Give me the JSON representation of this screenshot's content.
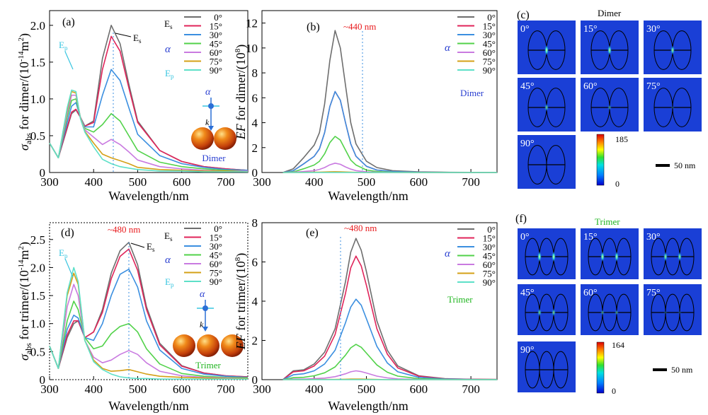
{
  "colors": {
    "0": "#6e6e6e",
    "15": "#e0245a",
    "30": "#3b8fe0",
    "45": "#52d24a",
    "60": "#c97ae0",
    "75": "#d4a017",
    "90": "#5de0c8",
    "accent_red": "#e8191c",
    "alpha_blue": "#2a3fd1",
    "trimer_green": "#1fb51f",
    "ep_cyan": "#38c5e0",
    "map_bg": "#1a3fd6"
  },
  "legend": {
    "angles": [
      "0°",
      "15°",
      "30°",
      "45°",
      "60°",
      "75°",
      "90°"
    ],
    "es": "Es",
    "alpha": "α",
    "ep": "Ep",
    "k": "k"
  },
  "panels": {
    "a": {
      "tag": "(a)",
      "ylabel": "σabs for dimer/(10-14m2)",
      "xlabel": "Wavelength/nm",
      "structure": "Dimer",
      "es_annot": "Es",
      "ep_annot": "Ep"
    },
    "b": {
      "tag": "(b)",
      "ylabel": "EF for dimer/(108)",
      "xlabel": "Wavelength/nm",
      "peak": "~440 nm",
      "structure": "Dimer"
    },
    "c": {
      "tag": "(c)",
      "title": "Dimer",
      "angles": [
        "0°",
        "15°",
        "30°",
        "45°",
        "60°",
        "75°",
        "90°"
      ],
      "cb_max": "185",
      "cb_min": "0",
      "scale": "50 nm"
    },
    "d": {
      "tag": "(d)",
      "ylabel": "σabs for trimer/(10-14m2)",
      "xlabel": "Wavelength/nm",
      "peak": "~480 nm",
      "structure": "Trimer",
      "es_annot": "Es",
      "ep_annot": "Ep"
    },
    "e": {
      "tag": "(e)",
      "ylabel": "EF for trimer/(108)",
      "xlabel": "Wavelength/nm",
      "peak": "~480 nm",
      "structure": "Trimer"
    },
    "f": {
      "tag": "(f)",
      "title": "Trimer",
      "angles": [
        "0°",
        "15°",
        "30°",
        "45°",
        "60°",
        "75°",
        "90°"
      ],
      "cb_max": "164",
      "cb_min": "0",
      "scale": "50 nm"
    }
  },
  "chart_data": [
    {
      "id": "a",
      "type": "line",
      "x": [
        300,
        320,
        340,
        350,
        360,
        370,
        380,
        400,
        420,
        440,
        460,
        480,
        500,
        550,
        600,
        650,
        700,
        750
      ],
      "xlim": [
        300,
        750
      ],
      "ylim": [
        0,
        2.2
      ],
      "xticks": [
        300,
        400,
        500,
        600,
        700
      ],
      "yticks": [
        0,
        0.5,
        1.0,
        1.5,
        2.0
      ],
      "yticklabels": [
        "0",
        "0.5",
        "1.0",
        "1.5",
        "2.0"
      ],
      "series": [
        {
          "name": "0°",
          "values": [
            0.4,
            0.2,
            0.6,
            0.8,
            0.85,
            0.75,
            0.63,
            0.7,
            1.55,
            2.0,
            1.75,
            1.2,
            0.7,
            0.3,
            0.15,
            0.08,
            0.05,
            0.03
          ]
        },
        {
          "name": "15°",
          "values": [
            0.4,
            0.2,
            0.62,
            0.82,
            0.86,
            0.75,
            0.63,
            0.68,
            1.4,
            1.85,
            1.65,
            1.15,
            0.68,
            0.3,
            0.15,
            0.08,
            0.05,
            0.03
          ]
        },
        {
          "name": "30°",
          "values": [
            0.4,
            0.2,
            0.68,
            0.9,
            0.95,
            0.75,
            0.62,
            0.62,
            1.05,
            1.4,
            1.25,
            0.88,
            0.52,
            0.23,
            0.12,
            0.07,
            0.04,
            0.03
          ]
        },
        {
          "name": "45°",
          "values": [
            0.4,
            0.2,
            0.75,
            0.98,
            1.0,
            0.75,
            0.6,
            0.55,
            0.65,
            0.8,
            0.7,
            0.5,
            0.3,
            0.14,
            0.08,
            0.05,
            0.03,
            0.02
          ]
        },
        {
          "name": "60°",
          "values": [
            0.4,
            0.2,
            0.8,
            1.05,
            1.05,
            0.75,
            0.58,
            0.48,
            0.38,
            0.45,
            0.38,
            0.28,
            0.17,
            0.08,
            0.05,
            0.03,
            0.02,
            0.02
          ]
        },
        {
          "name": "75°",
          "values": [
            0.4,
            0.2,
            0.85,
            1.1,
            1.08,
            0.74,
            0.56,
            0.4,
            0.25,
            0.2,
            0.16,
            0.12,
            0.07,
            0.04,
            0.03,
            0.02,
            0.02,
            0.01
          ]
        },
        {
          "name": "90°",
          "values": [
            0.4,
            0.2,
            0.88,
            1.12,
            1.1,
            0.73,
            0.55,
            0.35,
            0.18,
            0.12,
            0.08,
            0.06,
            0.04,
            0.02,
            0.02,
            0.01,
            0.01,
            0.01
          ]
        }
      ]
    },
    {
      "id": "b",
      "type": "line",
      "x": [
        340,
        360,
        380,
        400,
        410,
        420,
        430,
        440,
        450,
        460,
        470,
        480,
        500,
        520,
        550,
        600,
        650,
        700,
        750
      ],
      "xlim": [
        300,
        750
      ],
      "ylim": [
        0,
        13
      ],
      "xticks": [
        300,
        400,
        500,
        600,
        700
      ],
      "yticks": [
        0,
        2,
        4,
        6,
        8,
        10,
        12
      ],
      "yticklabels": [
        "0",
        "2",
        "4",
        "6",
        "8",
        "10",
        "12"
      ],
      "series": [
        {
          "name": "0°",
          "values": [
            0,
            0.3,
            1.2,
            2.2,
            3.2,
            5.5,
            9.0,
            11.4,
            10.0,
            7.0,
            4.0,
            2.3,
            0.9,
            0.4,
            0.15,
            0.05,
            0.02,
            0.01,
            0
          ]
        },
        {
          "name": "15°",
          "values": [
            0,
            0.15,
            0.7,
            1.3,
            1.9,
            3.2,
            5.3,
            6.5,
            5.8,
            4.0,
            2.3,
            1.3,
            0.5,
            0.2,
            0.08,
            0.03,
            0.01,
            0,
            0
          ]
        },
        {
          "name": "30°",
          "values": [
            0,
            0.15,
            0.7,
            1.3,
            1.9,
            3.2,
            5.3,
            6.5,
            5.8,
            4.0,
            2.3,
            1.3,
            0.5,
            0.2,
            0.08,
            0.03,
            0.01,
            0,
            0
          ]
        },
        {
          "name": "45°",
          "values": [
            0,
            0.05,
            0.3,
            0.6,
            0.9,
            1.5,
            2.4,
            2.9,
            2.6,
            1.8,
            1.0,
            0.6,
            0.2,
            0.08,
            0.03,
            0.01,
            0,
            0,
            0
          ]
        },
        {
          "name": "60°",
          "values": [
            0,
            0.02,
            0.08,
            0.15,
            0.25,
            0.4,
            0.62,
            0.75,
            0.66,
            0.45,
            0.27,
            0.15,
            0.05,
            0.02,
            0.01,
            0,
            0,
            0,
            0
          ]
        },
        {
          "name": "75°",
          "values": [
            0,
            0,
            0.01,
            0.02,
            0.03,
            0.04,
            0.05,
            0.06,
            0.05,
            0.04,
            0.02,
            0.01,
            0,
            0,
            0,
            0,
            0,
            0,
            0
          ]
        },
        {
          "name": "90°",
          "values": [
            0,
            0,
            0,
            0,
            0,
            0,
            0,
            0,
            0,
            0,
            0,
            0,
            0,
            0,
            0,
            0,
            0,
            0,
            0
          ]
        }
      ]
    },
    {
      "id": "d",
      "type": "line",
      "x": [
        300,
        320,
        340,
        355,
        365,
        380,
        400,
        420,
        440,
        460,
        480,
        500,
        520,
        550,
        600,
        650,
        700,
        750
      ],
      "xlim": [
        300,
        750
      ],
      "ylim": [
        0,
        2.8
      ],
      "xticks": [
        300,
        400,
        500,
        600,
        700
      ],
      "yticks": [
        0,
        0.5,
        1.0,
        1.5,
        2.0,
        2.5
      ],
      "yticklabels": [
        "0",
        "0.5",
        "1.0",
        "1.5",
        "2.0",
        "2.5"
      ],
      "series": [
        {
          "name": "0°",
          "values": [
            0.6,
            0.2,
            0.75,
            1.0,
            1.05,
            0.75,
            0.85,
            1.25,
            1.9,
            2.3,
            2.45,
            2.05,
            1.3,
            0.65,
            0.25,
            0.12,
            0.07,
            0.05
          ]
        },
        {
          "name": "15°",
          "values": [
            0.6,
            0.2,
            0.8,
            1.05,
            1.05,
            0.75,
            0.85,
            1.2,
            1.8,
            2.2,
            2.33,
            1.95,
            1.25,
            0.62,
            0.24,
            0.12,
            0.07,
            0.05
          ]
        },
        {
          "name": "30°",
          "values": [
            0.6,
            0.2,
            0.9,
            1.15,
            1.1,
            0.75,
            0.7,
            1.0,
            1.5,
            1.88,
            1.97,
            1.65,
            1.05,
            0.53,
            0.2,
            0.1,
            0.06,
            0.04
          ]
        },
        {
          "name": "45°",
          "values": [
            0.6,
            0.2,
            1.05,
            1.4,
            1.25,
            0.75,
            0.55,
            0.6,
            0.82,
            0.95,
            1.0,
            0.85,
            0.55,
            0.28,
            0.11,
            0.06,
            0.04,
            0.03
          ]
        },
        {
          "name": "60°",
          "values": [
            0.6,
            0.2,
            1.3,
            1.7,
            1.5,
            0.7,
            0.4,
            0.3,
            0.35,
            0.45,
            0.52,
            0.45,
            0.3,
            0.15,
            0.07,
            0.04,
            0.03,
            0.02
          ]
        },
        {
          "name": "75°",
          "values": [
            0.6,
            0.2,
            1.5,
            1.9,
            1.7,
            0.7,
            0.35,
            0.2,
            0.15,
            0.16,
            0.18,
            0.14,
            0.1,
            0.06,
            0.04,
            0.03,
            0.02,
            0.02
          ]
        },
        {
          "name": "90°",
          "values": [
            0.6,
            0.2,
            1.55,
            2.0,
            1.75,
            0.7,
            0.32,
            0.18,
            0.1,
            0.05,
            0.03,
            0.02,
            0.02,
            0.01,
            0.01,
            0.01,
            0.01,
            0.01
          ]
        }
      ]
    },
    {
      "id": "e",
      "type": "line",
      "x": [
        340,
        360,
        380,
        400,
        420,
        440,
        460,
        470,
        480,
        490,
        500,
        520,
        540,
        560,
        600,
        650,
        700,
        750
      ],
      "xlim": [
        300,
        750
      ],
      "ylim": [
        0,
        8
      ],
      "xticks": [
        300,
        400,
        500,
        600,
        700
      ],
      "yticks": [
        0,
        2,
        4,
        6,
        8
      ],
      "yticklabels": [
        "0",
        "2",
        "4",
        "6",
        "8"
      ],
      "series": [
        {
          "name": "0°",
          "values": [
            0,
            0.45,
            0.5,
            0.8,
            1.4,
            2.6,
            5.0,
            6.5,
            7.2,
            6.6,
            5.5,
            3.0,
            1.5,
            0.7,
            0.2,
            0.05,
            0.02,
            0.01
          ]
        },
        {
          "name": "15°",
          "values": [
            0,
            0.4,
            0.45,
            0.7,
            1.2,
            2.3,
            4.4,
            5.7,
            6.3,
            5.8,
            4.8,
            2.6,
            1.3,
            0.6,
            0.18,
            0.04,
            0.02,
            0.01
          ]
        },
        {
          "name": "30°",
          "values": [
            0,
            0.25,
            0.3,
            0.45,
            0.8,
            1.5,
            2.9,
            3.7,
            4.1,
            3.8,
            3.1,
            1.7,
            0.85,
            0.4,
            0.12,
            0.03,
            0.01,
            0
          ]
        },
        {
          "name": "45°",
          "values": [
            0,
            0.1,
            0.12,
            0.2,
            0.35,
            0.65,
            1.25,
            1.62,
            1.8,
            1.65,
            1.35,
            0.75,
            0.38,
            0.18,
            0.05,
            0.01,
            0,
            0
          ]
        },
        {
          "name": "60°",
          "values": [
            0,
            0.03,
            0.03,
            0.05,
            0.08,
            0.15,
            0.3,
            0.4,
            0.45,
            0.41,
            0.34,
            0.18,
            0.09,
            0.04,
            0.01,
            0,
            0,
            0
          ]
        },
        {
          "name": "75°",
          "values": [
            0,
            0,
            0,
            0.01,
            0.01,
            0.01,
            0.02,
            0.03,
            0.03,
            0.03,
            0.02,
            0.01,
            0,
            0,
            0,
            0,
            0,
            0
          ]
        },
        {
          "name": "90°",
          "values": [
            0,
            0,
            0,
            0,
            0,
            0,
            0,
            0,
            0,
            0,
            0,
            0,
            0,
            0,
            0,
            0,
            0,
            0
          ]
        }
      ]
    }
  ]
}
